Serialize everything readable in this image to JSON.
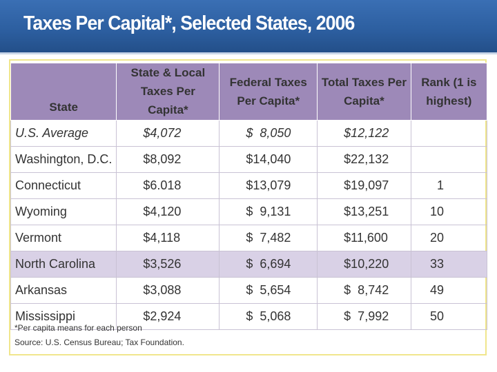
{
  "header": {
    "title": "Taxes Per Capital*, Selected States, 2006"
  },
  "table": {
    "columns": [
      "State",
      "State & Local Taxes Per Capita*",
      "Federal Taxes Per Capita*",
      "Total Taxes Per Capita*",
      "Rank (1 is highest)"
    ],
    "rows": [
      [
        "U.S. Average",
        "$4,072",
        "$  8,050",
        "$12,122"
      ],
      [
        "Washington, D.C.",
        "$8,092",
        "$14,040",
        "$22,132"
      ],
      [
        "Connecticut",
        "$6.018",
        "$13,079",
        "$19,097",
        "1"
      ],
      [
        "Wyoming",
        "$4,120",
        "$  9,131",
        "$13,251",
        "10"
      ],
      [
        "Vermont",
        "$4,118",
        "$  7,482",
        "$11,600",
        "20"
      ],
      [
        "North Carolina",
        "$3,526",
        "$  6,694",
        "$10,220",
        "33"
      ],
      [
        "Arkansas",
        "$3,088",
        "$  5,654",
        "$  8,742",
        "49"
      ],
      [
        "Mississippi",
        "$2,924",
        "$  5,068",
        "$  7,992",
        "50"
      ]
    ]
  },
  "footnotes": [
    "*Per capita means for each person",
    "Source: U.S. Census Bureau; Tax Foundation."
  ]
}
